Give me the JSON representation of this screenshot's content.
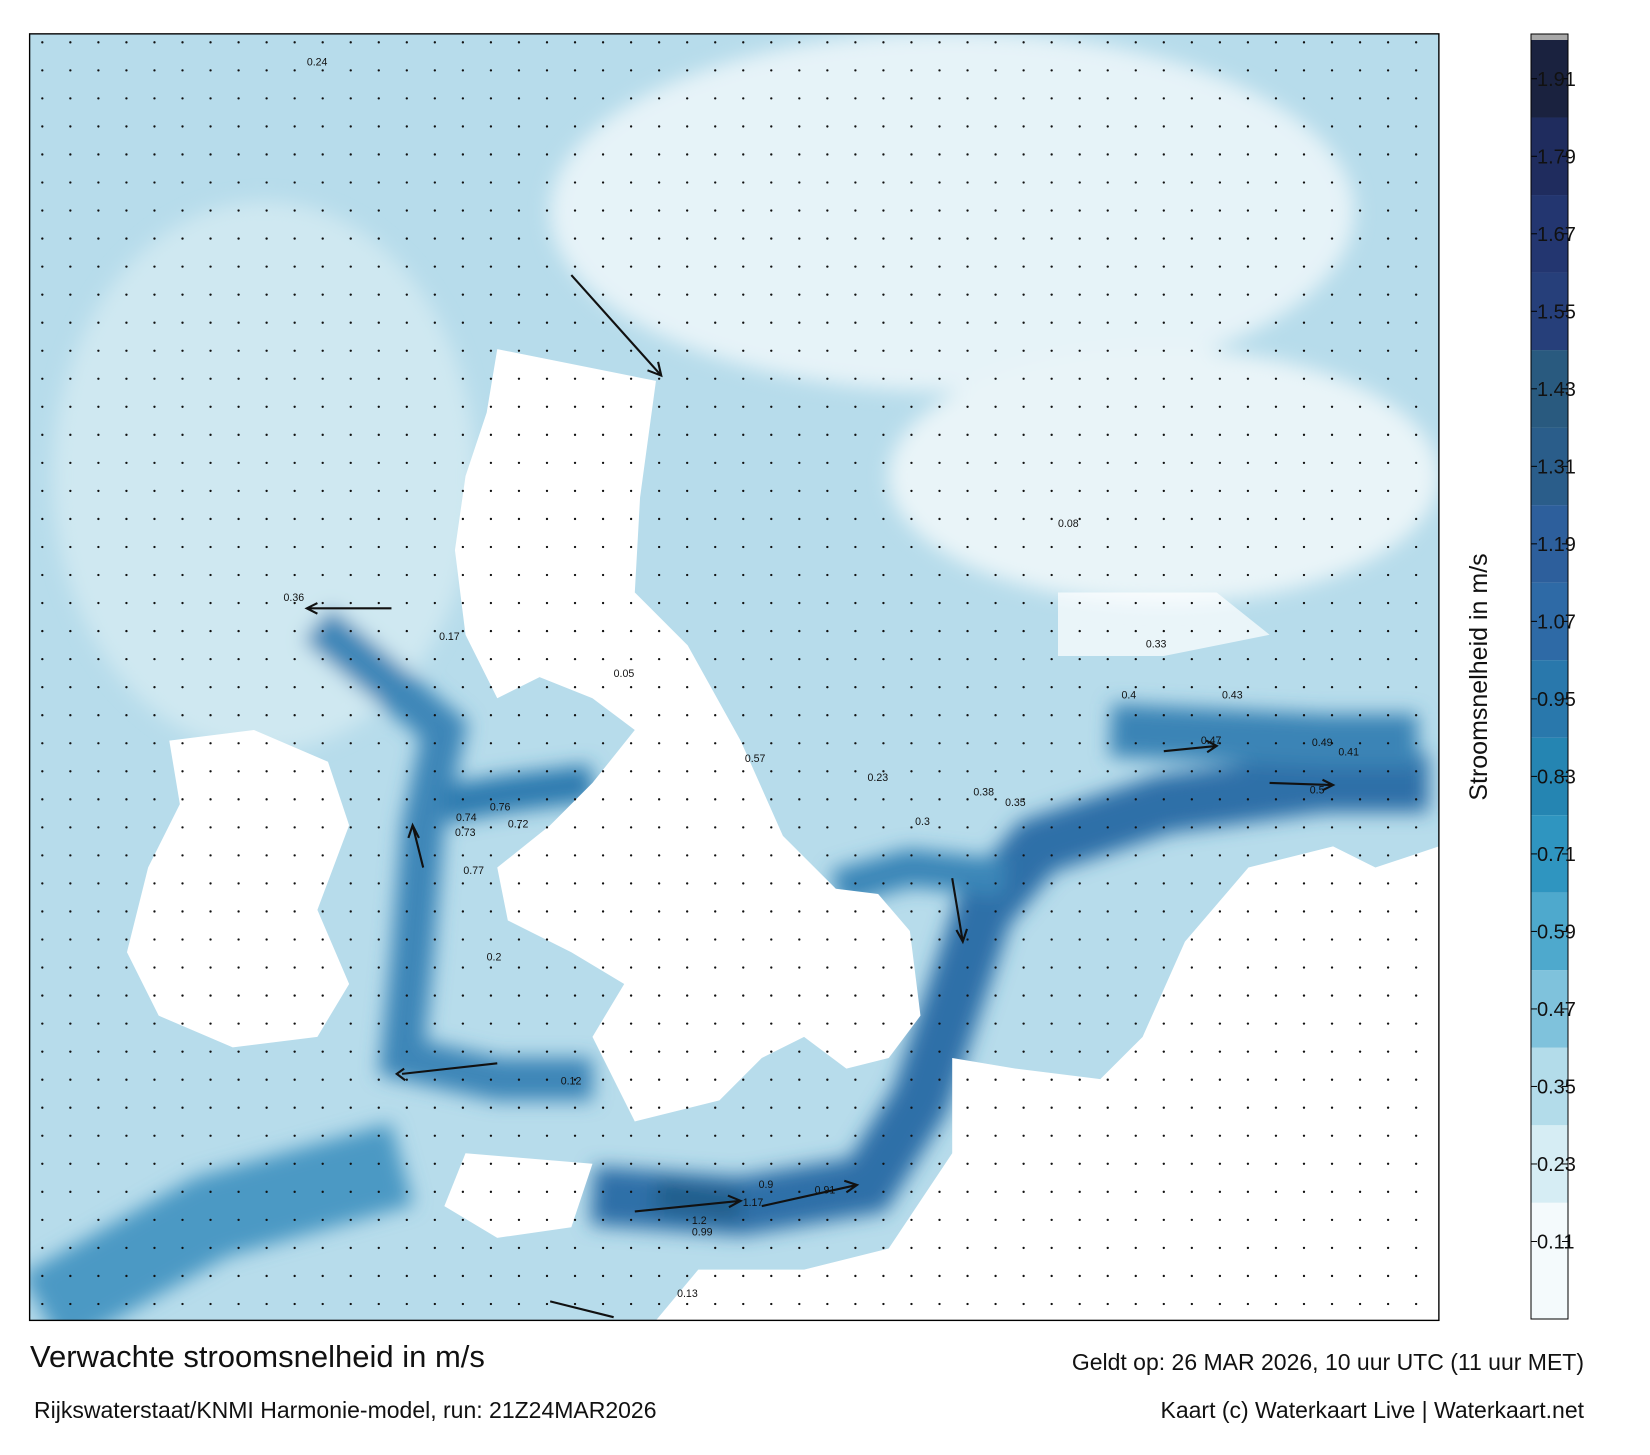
{
  "header": {
    "title": "Verwachte stroomsnelheid in m/s",
    "subtitle": "Rijkswaterstaat/KNMI Harmonie-model, run: 21Z24MAR2026",
    "valid": "Geldt op: 26 MAR 2026, 10 uur UTC (11 uur MET)",
    "credit": "Kaart (c) Waterkaart Live | Waterkaart.net"
  },
  "colorbar": {
    "label": "Stroomsnelheid in m/s",
    "lim": [
      -0.01,
      1.97
    ],
    "ticks": [
      0.11,
      0.23,
      0.35,
      0.47,
      0.59,
      0.71,
      0.83,
      0.95,
      1.07,
      1.19,
      1.31,
      1.43,
      1.55,
      1.67,
      1.79,
      1.91
    ],
    "colors": [
      "#f4fafc",
      "#d6edf4",
      "#b3dcea",
      "#7fc2dc",
      "#4ea9cd",
      "#2f95c0",
      "#2585b2",
      "#2978ac",
      "#2e6aa6",
      "#2d5f9c",
      "#2a5d8a",
      "#295a7f",
      "#263f7a",
      "#233670",
      "#1f2c5e",
      "#1a223f"
    ]
  },
  "map": {
    "speed_labels": [
      0.74,
      0.73,
      0.77,
      0.76,
      0.72,
      1.17,
      1.2,
      0.99,
      0.9,
      0.91,
      0.57,
      0.49,
      0.5,
      0.47,
      0.43,
      0.36,
      0.4,
      0.38,
      0.35,
      0.41,
      0.24,
      0.17,
      0.12,
      0.05,
      0.08,
      0.23,
      0.3,
      0.13,
      0.2,
      0.33
    ]
  }
}
